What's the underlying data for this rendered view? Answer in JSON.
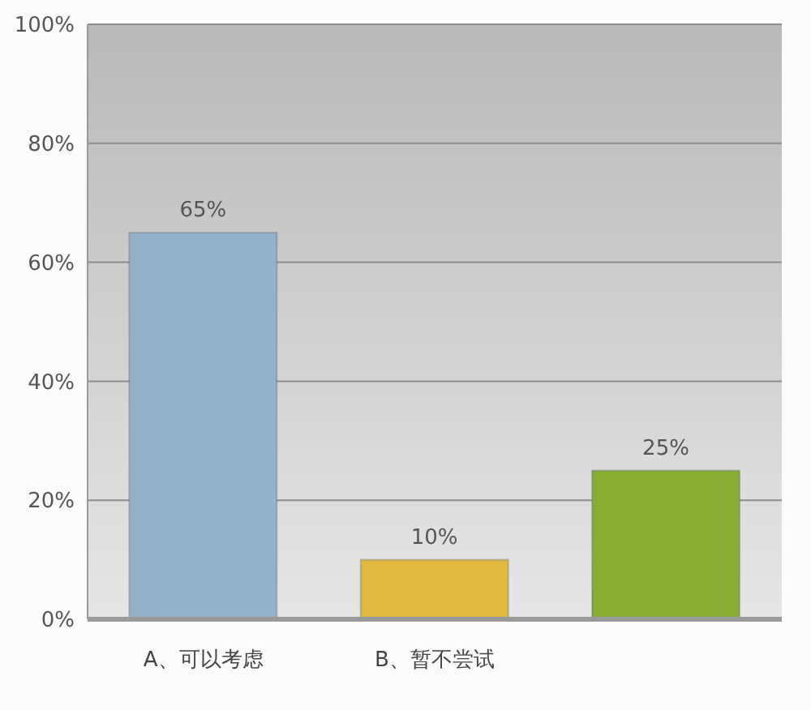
{
  "chart_data": {
    "type": "bar",
    "categories": [
      "A、可以考虑",
      "B、暂不尝试",
      null
    ],
    "values": [
      65,
      10,
      25
    ],
    "colors": [
      "#93b1c9",
      "#e2b93f",
      "#86ad32"
    ],
    "value_labels": [
      "65%",
      "10%",
      "25%"
    ],
    "ylim": [
      0,
      100
    ],
    "yticks": [
      {
        "value": 0,
        "label": "0%"
      },
      {
        "value": 20,
        "label": "20%"
      },
      {
        "value": 40,
        "label": "40%"
      },
      {
        "value": 60,
        "label": "60%"
      },
      {
        "value": 80,
        "label": "80%"
      },
      {
        "value": 100,
        "label": "100%"
      }
    ],
    "grid": "y"
  }
}
